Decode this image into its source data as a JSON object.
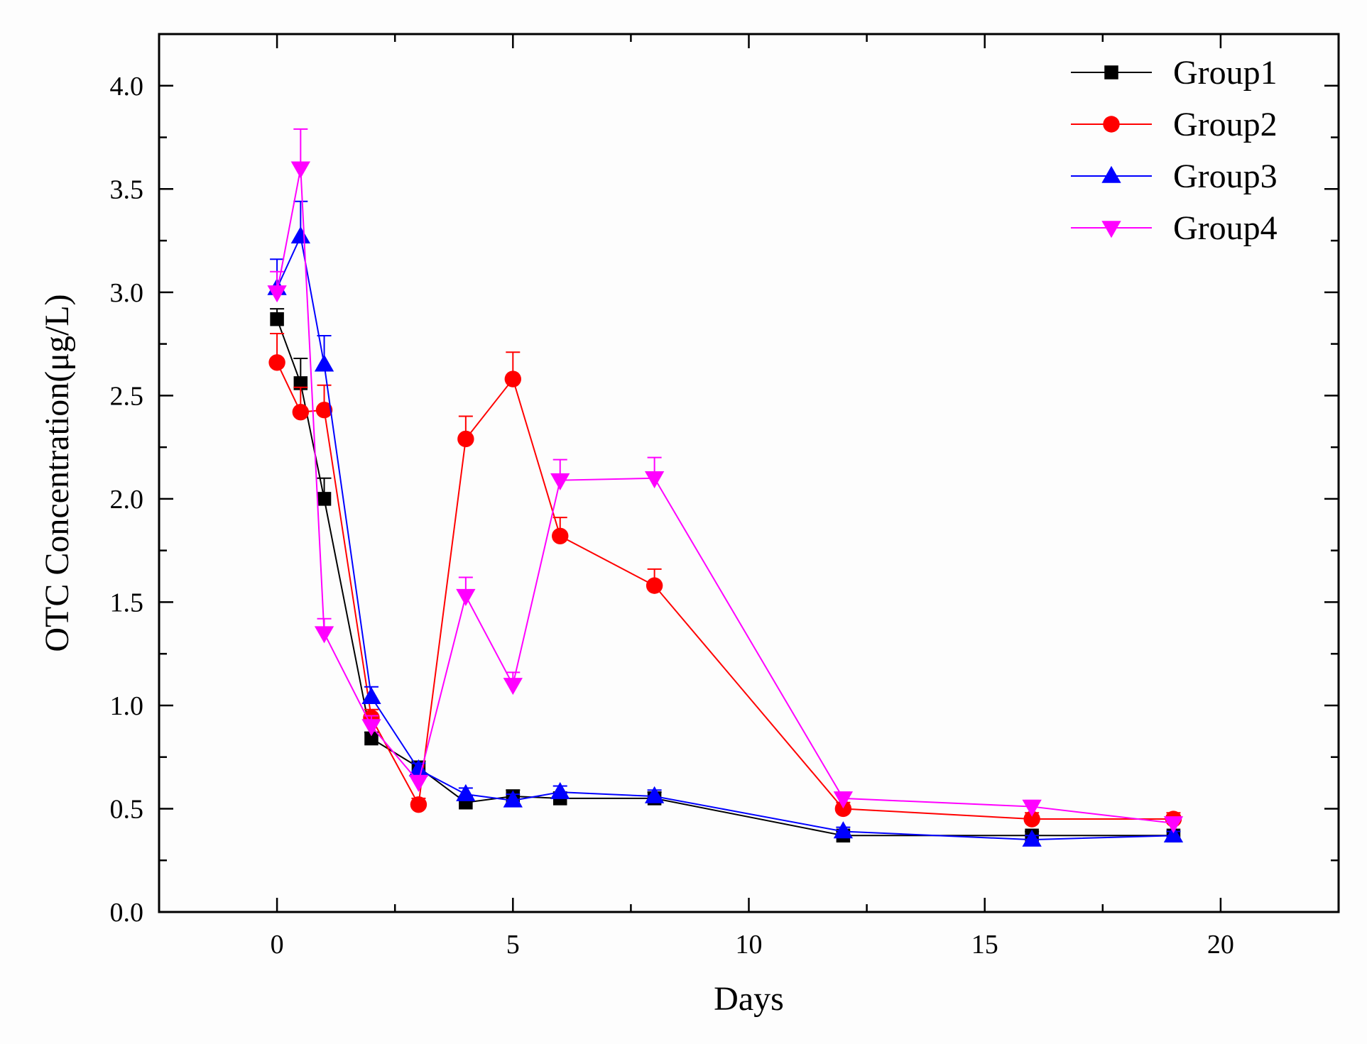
{
  "chart_data": {
    "type": "line",
    "title": "",
    "xlabel": "Days",
    "ylabel": "OTC  Concentration(μg/L)",
    "xlim": [
      -2.5,
      22.5
    ],
    "ylim": [
      0.0,
      4.25
    ],
    "x_ticks": [
      0,
      5,
      10,
      15,
      20
    ],
    "x_tick_labels": [
      "0",
      "5",
      "10",
      "15",
      "20"
    ],
    "y_ticks": [
      0.0,
      0.5,
      1.0,
      1.5,
      2.0,
      2.5,
      3.0,
      3.5,
      4.0
    ],
    "y_tick_labels": [
      "0.0",
      "0.5",
      "1.0",
      "1.5",
      "2.0",
      "2.5",
      "3.0",
      "3.5",
      "4.0"
    ],
    "grid": false,
    "legend_position": "top-right",
    "x": [
      0,
      0.5,
      1,
      2,
      3,
      4,
      5,
      6,
      8,
      12,
      16,
      19
    ],
    "series": [
      {
        "name": "Group1",
        "color": "#000000",
        "marker": "square",
        "values": [
          2.87,
          2.56,
          2.0,
          0.84,
          0.7,
          0.53,
          0.56,
          0.55,
          0.55,
          0.37,
          0.37,
          0.37
        ],
        "errors": [
          0.05,
          0.12,
          0.1,
          0.03,
          0.03,
          0.03,
          0.03,
          0.03,
          0.03,
          0.02,
          0.02,
          0.02
        ]
      },
      {
        "name": "Group2",
        "color": "#ff0000",
        "marker": "circle",
        "values": [
          2.66,
          2.42,
          2.43,
          0.94,
          0.52,
          2.29,
          2.58,
          1.82,
          1.58,
          0.5,
          0.45,
          0.45
        ],
        "errors": [
          0.14,
          0.12,
          0.12,
          0.04,
          0.03,
          0.11,
          0.13,
          0.09,
          0.08,
          0.03,
          0.03,
          0.03
        ]
      },
      {
        "name": "Group3",
        "color": "#0000ff",
        "marker": "triangle-up",
        "values": [
          3.02,
          3.27,
          2.65,
          1.04,
          0.69,
          0.57,
          0.54,
          0.58,
          0.56,
          0.39,
          0.35,
          0.37
        ],
        "errors": [
          0.14,
          0.17,
          0.14,
          0.05,
          0.03,
          0.03,
          0.03,
          0.03,
          0.03,
          0.02,
          0.02,
          0.02
        ]
      },
      {
        "name": "Group4",
        "color": "#ff00ff",
        "marker": "triangle-down",
        "values": [
          3.0,
          3.6,
          1.35,
          0.9,
          0.63,
          1.53,
          1.1,
          2.09,
          2.1,
          0.55,
          0.51,
          0.43
        ],
        "errors": [
          0.1,
          0.19,
          0.07,
          0.05,
          0.03,
          0.09,
          0.06,
          0.1,
          0.1,
          0.03,
          0.03,
          0.02
        ]
      }
    ]
  }
}
